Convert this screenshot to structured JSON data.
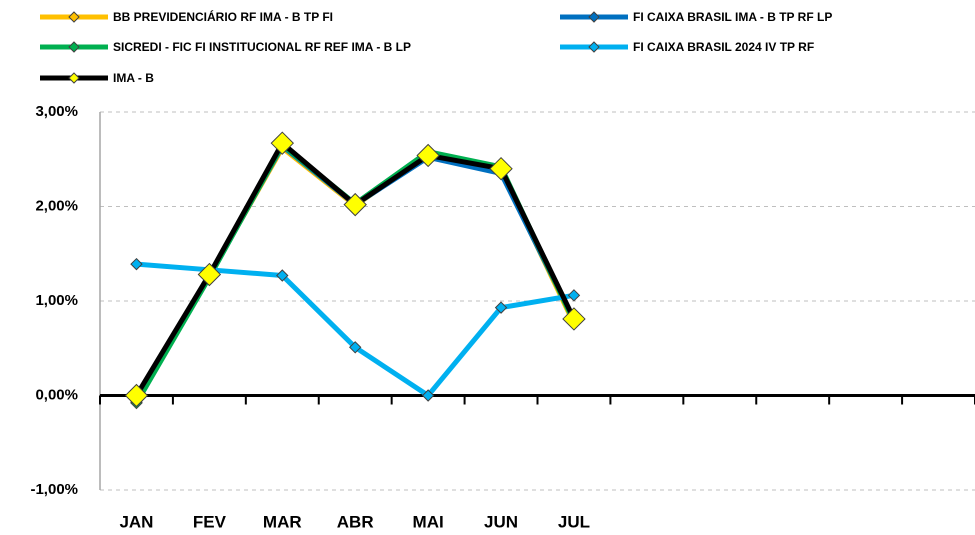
{
  "chart_data": {
    "type": "line",
    "categories": [
      "JAN",
      "FEV",
      "MAR",
      "ABR",
      "MAI",
      "JUN",
      "JUL",
      null,
      null,
      null,
      null,
      null
    ],
    "series": [
      {
        "name": "BB PREVIDENCIÁRIO RF IMA - B TP FI",
        "color": "#FFC000",
        "values": [
          -0.05,
          1.27,
          2.62,
          2.01,
          2.55,
          2.38,
          0.76,
          null,
          null,
          null,
          null,
          null
        ]
      },
      {
        "name": "FI CAIXA BRASIL IMA - B TP RF LP",
        "color": "#0070C0",
        "values": [
          -0.07,
          1.26,
          2.64,
          2.02,
          2.52,
          2.35,
          0.8,
          null,
          null,
          null,
          null,
          null
        ]
      },
      {
        "name": "SICREDI - FIC FI INSTITUCIONAL RF REF IMA - B LP",
        "color": "#00B050",
        "values": [
          -0.08,
          1.25,
          2.65,
          2.03,
          2.58,
          2.42,
          0.78,
          null,
          null,
          null,
          null,
          null
        ]
      },
      {
        "name": "FI CAIXA BRASIL 2024 IV TP RF",
        "color": "#00B0F0",
        "values": [
          1.39,
          1.33,
          1.27,
          0.51,
          0.0,
          0.93,
          1.06,
          null,
          null,
          null,
          null,
          null
        ]
      },
      {
        "name": "IMA - B",
        "color": "#000000",
        "marker_color": "#FFFF00",
        "values": [
          0.0,
          1.28,
          2.67,
          2.02,
          2.54,
          2.4,
          0.81,
          null,
          null,
          null,
          null,
          null
        ]
      }
    ],
    "ylim": [
      -1,
      3
    ],
    "yticks": [
      {
        "value": -1,
        "label": "-1,00%"
      },
      {
        "value": 0,
        "label": "0,00%"
      },
      {
        "value": 1,
        "label": "1,00%"
      },
      {
        "value": 2,
        "label": "2,00%"
      },
      {
        "value": 3,
        "label": "3,00%"
      }
    ],
    "grid": true
  }
}
